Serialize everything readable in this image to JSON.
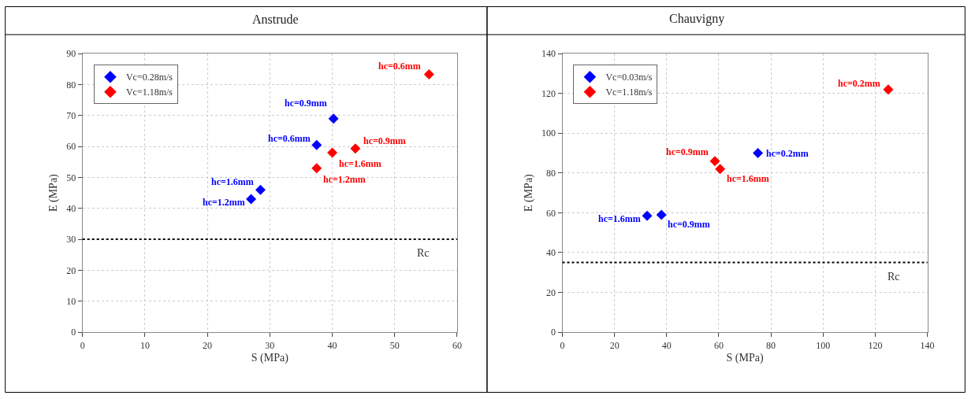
{
  "chart_data": [
    {
      "type": "scatter",
      "title": "Anstrude",
      "xlabel": "S (MPa)",
      "ylabel": "E (MPa)",
      "xlim": [
        0,
        60
      ],
      "xticks": [
        0,
        10,
        20,
        30,
        40,
        50,
        60
      ],
      "ylim": [
        0,
        90
      ],
      "yticks": [
        0,
        10,
        20,
        30,
        40,
        50,
        60,
        70,
        80,
        90
      ],
      "grid": true,
      "legend": "top left",
      "marker": "diamond",
      "series": [
        {
          "name": "Vc=0.28m/s",
          "color": "#0000ff",
          "x": [
            27,
            28.5,
            37.5,
            40.2
          ],
          "values": [
            43,
            46,
            60.5,
            69
          ]
        },
        {
          "name": "Vc=1.18m/s",
          "color": "#ff0000",
          "x": [
            37.5,
            40,
            43.7,
            55.5
          ],
          "values": [
            53,
            58,
            59.3,
            83.3
          ]
        }
      ],
      "annotations": [
        {
          "text": "hc=1.2mm",
          "x": 27,
          "y": 43
        },
        {
          "text": "hc=1.6mm",
          "x": 28.5,
          "y": 46
        },
        {
          "text": "hc=0.6mm",
          "x": 37.5,
          "y": 60.5
        },
        {
          "text": "hc=0.9mm",
          "x": 40.2,
          "y": 69
        },
        {
          "text": "hc=1.2mm",
          "x": 37.5,
          "y": 53
        },
        {
          "text": "hc=1.6mm",
          "x": 40,
          "y": 58
        },
        {
          "text": "hc=0.9mm",
          "x": 43.7,
          "y": 59.3
        },
        {
          "text": "hc=0.6mm",
          "x": 55.5,
          "y": 83.3
        }
      ],
      "ref_lines": [
        {
          "axis": "y",
          "value": 30,
          "label": "Rc",
          "color": "#000000",
          "line_style": "dotted"
        }
      ]
    },
    {
      "type": "scatter",
      "title": "Chauvigny",
      "xlabel": "S (MPa)",
      "ylabel": "E (MPa)",
      "xlim": [
        0,
        140
      ],
      "xticks": [
        0,
        20,
        40,
        60,
        80,
        100,
        120,
        140
      ],
      "ylim": [
        0,
        140
      ],
      "yticks": [
        0,
        20,
        40,
        60,
        80,
        100,
        120,
        140
      ],
      "grid": true,
      "legend": "top left",
      "marker": "diamond",
      "series": [
        {
          "name": "Vc=0.03m/s",
          "color": "#0000ff",
          "x": [
            32.5,
            38,
            75
          ],
          "values": [
            58.5,
            59,
            90
          ]
        },
        {
          "name": "Vc=1.18m/s",
          "color": "#ff0000",
          "x": [
            58.5,
            60.5,
            125
          ],
          "values": [
            86,
            82,
            122
          ]
        }
      ],
      "annotations": [
        {
          "text": "hc=1.6mm",
          "x": 32.5,
          "y": 58.5
        },
        {
          "text": "hc=0.9mm",
          "x": 38,
          "y": 59
        },
        {
          "text": "hc=0.2mm",
          "x": 75,
          "y": 90
        },
        {
          "text": "hc=0.9mm",
          "x": 58.5,
          "y": 86
        },
        {
          "text": "hc=1.6mm",
          "x": 60.5,
          "y": 82
        },
        {
          "text": "hc=0.2mm",
          "x": 125,
          "y": 122
        }
      ],
      "ref_lines": [
        {
          "axis": "y",
          "value": 35,
          "label": "Rc",
          "color": "#000000",
          "line_style": "dotted"
        }
      ]
    }
  ]
}
